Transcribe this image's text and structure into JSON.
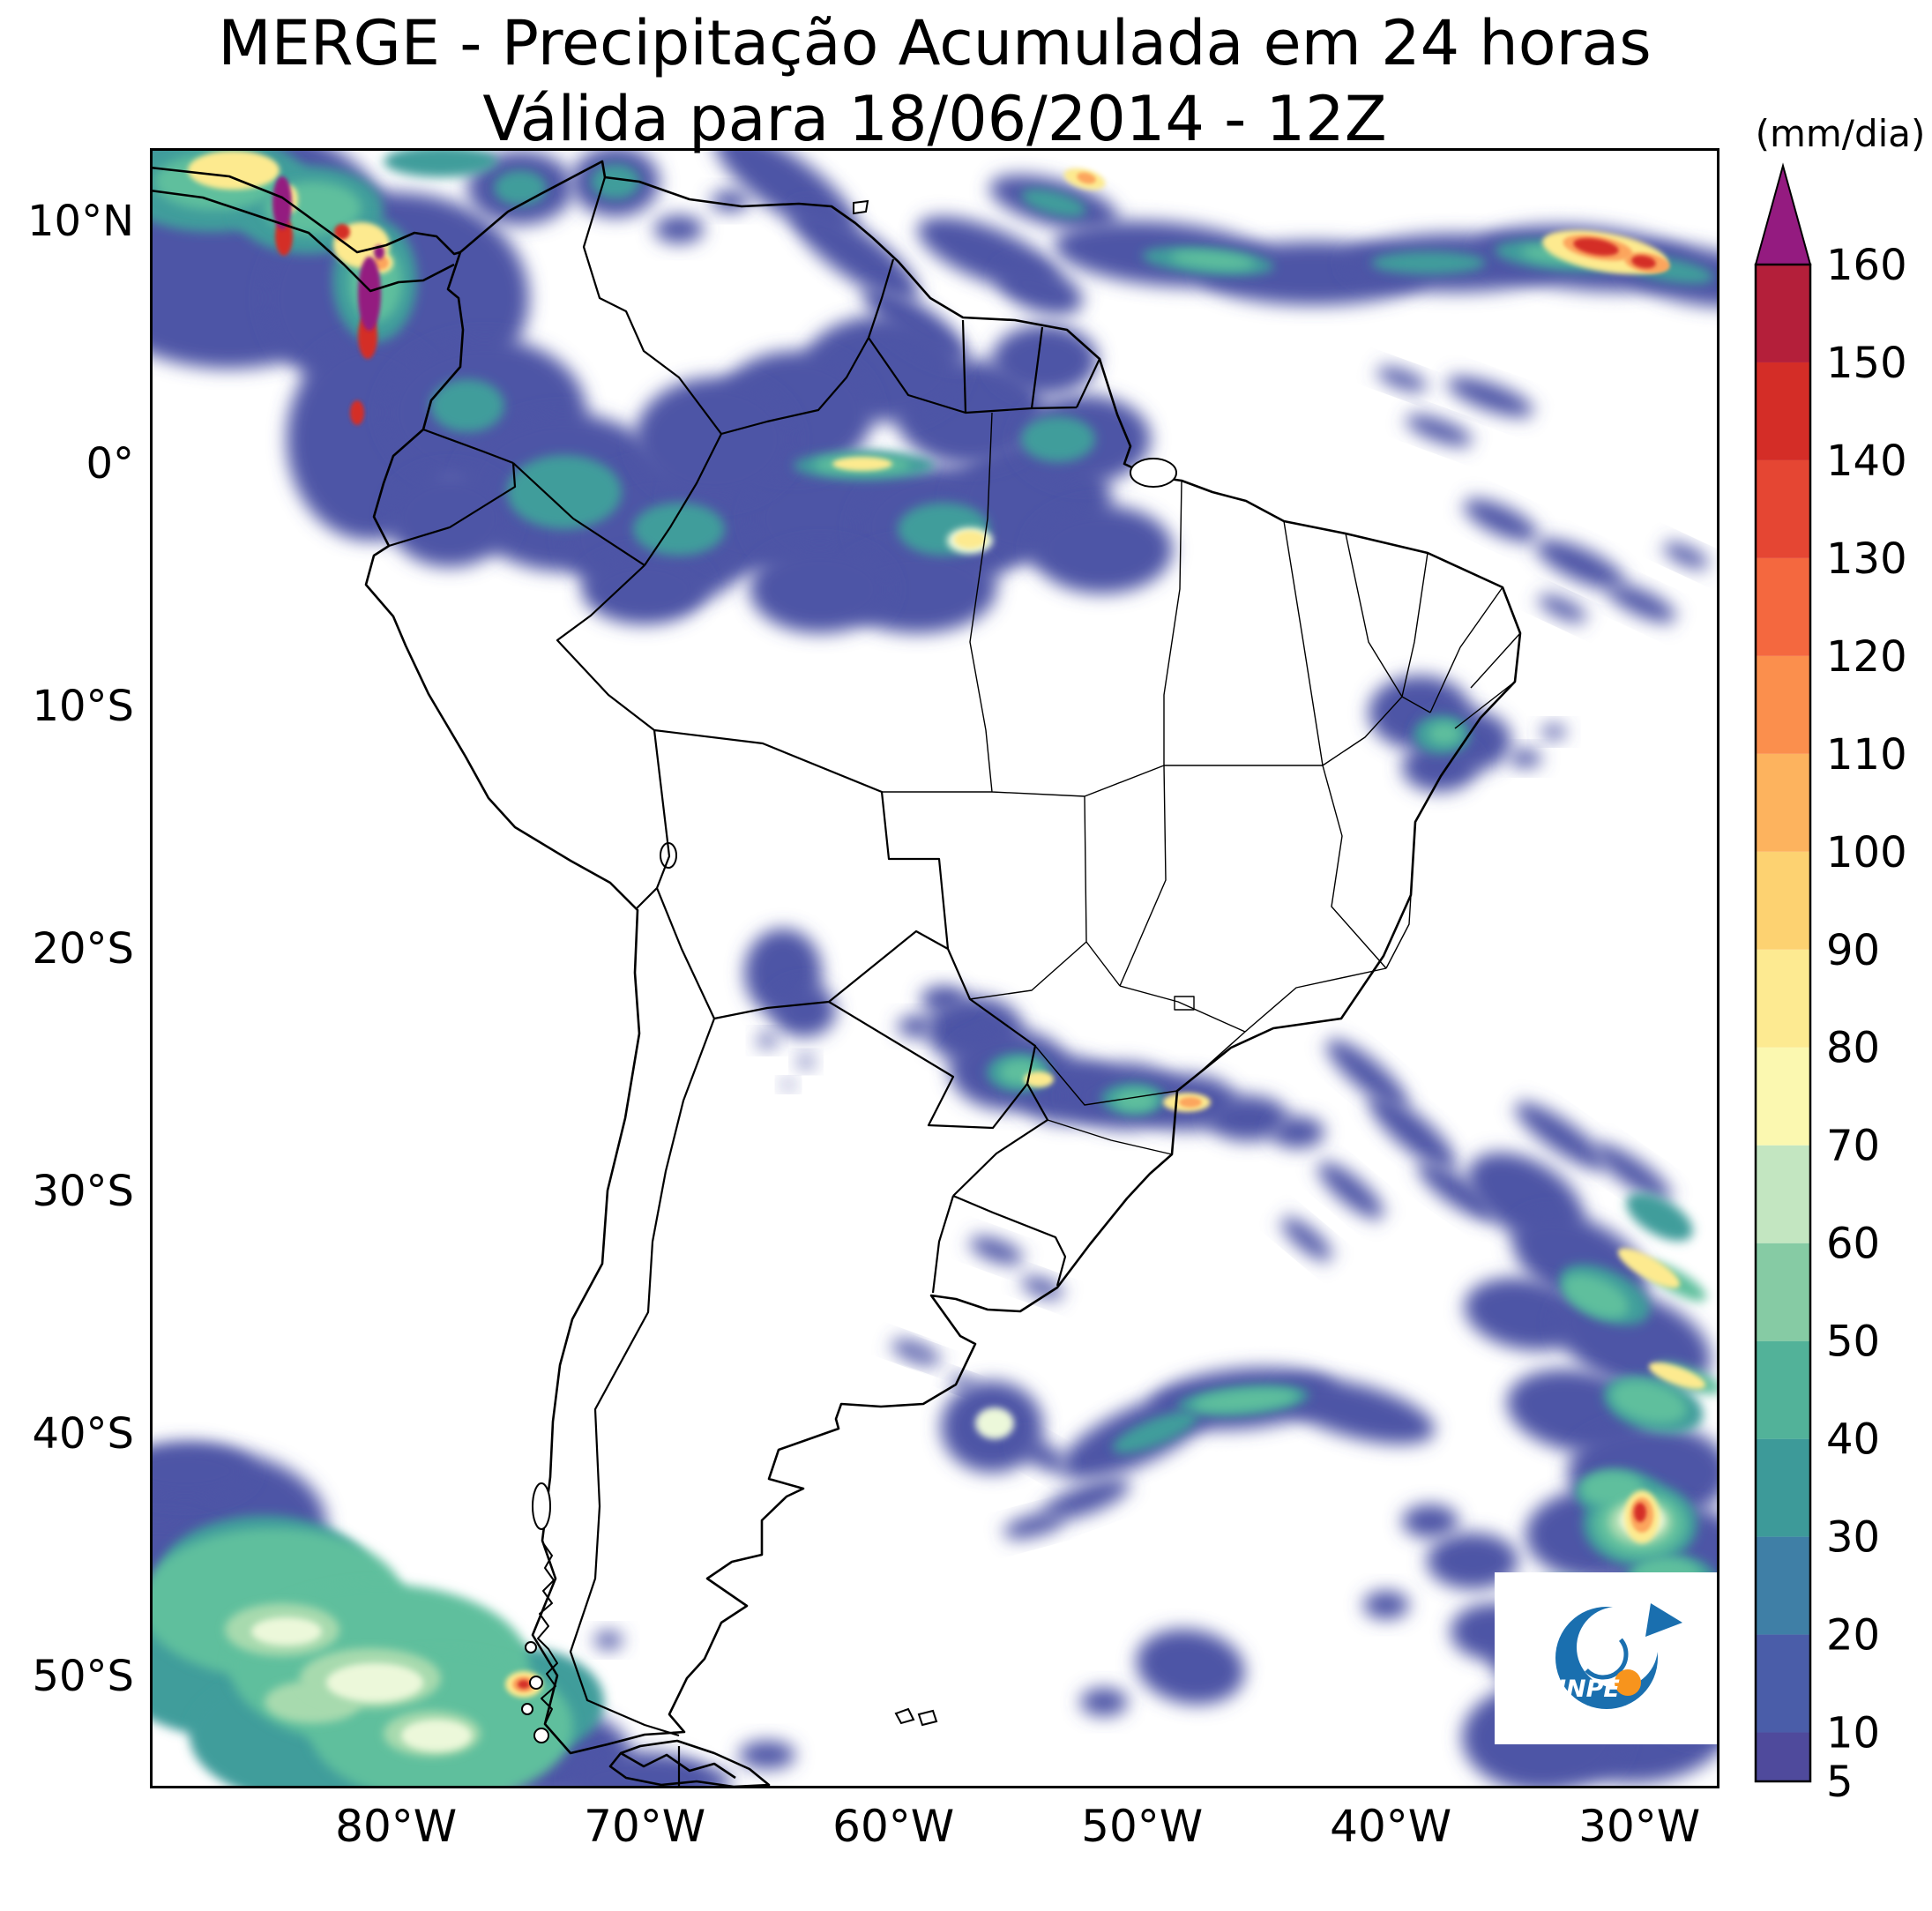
{
  "title": {
    "line1": "MERGE - Precipitação Acumulada em 24 horas",
    "line2": "Válida para 18/06/2014 - 12Z"
  },
  "axes": {
    "lat_ticks": [
      {
        "label": "10°N",
        "deg": 10
      },
      {
        "label": "0°",
        "deg": 0
      },
      {
        "label": "10°S",
        "deg": -10
      },
      {
        "label": "20°S",
        "deg": -20
      },
      {
        "label": "30°S",
        "deg": -30
      },
      {
        "label": "40°S",
        "deg": -40
      },
      {
        "label": "50°S",
        "deg": -50
      }
    ],
    "lon_ticks": [
      {
        "label": "80°W",
        "deg": 80
      },
      {
        "label": "70°W",
        "deg": 70
      },
      {
        "label": "60°W",
        "deg": 60
      },
      {
        "label": "50°W",
        "deg": 50
      },
      {
        "label": "40°W",
        "deg": 40
      },
      {
        "label": "30°W",
        "deg": 30
      }
    ]
  },
  "colorbar": {
    "unit_label": "(mm/dia)",
    "levels": [
      5,
      10,
      20,
      30,
      40,
      50,
      60,
      70,
      80,
      90,
      100,
      110,
      120,
      130,
      140,
      150,
      160
    ],
    "tick_labels": [
      "5",
      "10",
      "20",
      "30",
      "40",
      "50",
      "60",
      "70",
      "80",
      "90",
      "100",
      "110",
      "120",
      "130",
      "140",
      "150",
      "160"
    ],
    "segment_colors": [
      "#4f4a9c",
      "#4a5da9",
      "#3f7fa6",
      "#3d9a99",
      "#52b299",
      "#86cba4",
      "#c3e6c1",
      "#fbf8b0",
      "#fdea91",
      "#fdd271",
      "#fdb35e",
      "#fb8f4d",
      "#f4683f",
      "#e54633",
      "#d42d27",
      "#b41f3a"
    ],
    "extend_color": "#941b80"
  },
  "logo": {
    "text": "INPE"
  },
  "palette": {
    "blue": "#4e55a6",
    "teal": "#3f9d9b",
    "green": "#5fbf9d",
    "lgreen": "#a7daae",
    "pale": "#ecf8da",
    "yellow": "#fdea8f",
    "orange": "#fca55d",
    "red": "#d42d27",
    "magenta": "#941b80",
    "logo_blue": "#1a6faf",
    "logo_orange": "#f7941d",
    "background": "#ffffff",
    "line": "#000000"
  },
  "precipitation_blobs": {
    "blue": [
      [
        90,
        110,
        190,
        140,
        0
      ],
      [
        280,
        170,
        150,
        120,
        0
      ],
      [
        250,
        330,
        95,
        115,
        0
      ],
      [
        420,
        45,
        60,
        42,
        0
      ],
      [
        528,
        38,
        50,
        40,
        0
      ],
      [
        600,
        92,
        28,
        16,
        0
      ],
      [
        658,
        60,
        22,
        12,
        0
      ],
      [
        380,
        300,
        115,
        85,
        0
      ],
      [
        470,
        390,
        120,
        90,
        0
      ],
      [
        580,
        440,
        110,
        80,
        0
      ],
      [
        340,
        420,
        70,
        55,
        0
      ],
      [
        690,
        400,
        100,
        80,
        0
      ],
      [
        790,
        420,
        110,
        70,
        0
      ],
      [
        900,
        430,
        100,
        70,
        0
      ],
      [
        1000,
        400,
        90,
        70,
        0
      ],
      [
        930,
        300,
        85,
        60,
        0
      ],
      [
        830,
        250,
        90,
        60,
        0
      ],
      [
        730,
        300,
        90,
        70,
        0
      ],
      [
        640,
        330,
        90,
        70,
        0
      ],
      [
        1060,
        330,
        75,
        50,
        0
      ],
      [
        1015,
        240,
        60,
        40,
        0
      ],
      [
        1080,
        455,
        80,
        50,
        0
      ],
      [
        870,
        500,
        90,
        50,
        0
      ],
      [
        760,
        500,
        80,
        50,
        0
      ],
      [
        560,
        500,
        70,
        40,
        0
      ],
      [
        720,
        40,
        95,
        32,
        35
      ],
      [
        800,
        120,
        85,
        27,
        35
      ],
      [
        868,
        200,
        70,
        22,
        35
      ],
      [
        950,
        120,
        85,
        30,
        22
      ],
      [
        1025,
        62,
        75,
        26,
        15
      ],
      [
        1150,
        120,
        125,
        36,
        5
      ],
      [
        1320,
        142,
        130,
        36,
        0
      ],
      [
        1480,
        130,
        125,
        33,
        0
      ],
      [
        1630,
        125,
        125,
        36,
        5
      ],
      [
        1755,
        145,
        85,
        32,
        10
      ],
      [
        1010,
        160,
        50,
        25,
        20
      ],
      [
        1520,
        282,
        52,
        15,
        20
      ],
      [
        1462,
        320,
        40,
        12,
        20
      ],
      [
        1420,
        262,
        30,
        10,
        20
      ],
      [
        1532,
        422,
        46,
        16,
        25
      ],
      [
        1622,
        472,
        55,
        18,
        25
      ],
      [
        1692,
        516,
        42,
        14,
        25
      ],
      [
        1602,
        522,
        30,
        10,
        25
      ],
      [
        1742,
        462,
        28,
        10,
        25
      ],
      [
        1440,
        640,
        58,
        42,
        0
      ],
      [
        1492,
        672,
        52,
        36,
        0
      ],
      [
        1462,
        702,
        42,
        28,
        0
      ],
      [
        1560,
        692,
        18,
        10,
        0
      ],
      [
        1592,
        662,
        14,
        8,
        0
      ],
      [
        718,
        935,
        44,
        50,
        0
      ],
      [
        742,
        978,
        36,
        30,
        0
      ],
      [
        700,
        1012,
        11,
        8,
        0
      ],
      [
        744,
        1036,
        9,
        7,
        0
      ],
      [
        724,
        1062,
        7,
        5,
        0
      ],
      [
        935,
        1000,
        55,
        38,
        0
      ],
      [
        975,
        1045,
        68,
        46,
        0
      ],
      [
        1040,
        1068,
        60,
        38,
        0
      ],
      [
        1105,
        1075,
        65,
        38,
        0
      ],
      [
        1175,
        1082,
        58,
        32,
        0
      ],
      [
        1245,
        1100,
        46,
        26,
        0
      ],
      [
        1302,
        1116,
        30,
        18,
        0
      ],
      [
        900,
        965,
        26,
        15,
        0
      ],
      [
        868,
        996,
        20,
        12,
        0
      ],
      [
        960,
        1250,
        32,
        12,
        20
      ],
      [
        1012,
        1292,
        25,
        10,
        20
      ],
      [
        880,
        1370,
        18,
        8,
        20
      ],
      [
        922,
        1400,
        15,
        7,
        20
      ],
      [
        860,
        1362,
        20,
        9,
        20
      ],
      [
        1120,
        1460,
        95,
        32,
        -25
      ],
      [
        1240,
        1418,
        105,
        34,
        -5
      ],
      [
        1368,
        1432,
        92,
        30,
        15
      ],
      [
        1062,
        1532,
        52,
        16,
        -20
      ],
      [
        1002,
        1562,
        35,
        12,
        -15
      ],
      [
        955,
        1450,
        58,
        52,
        0
      ],
      [
        1012,
        1482,
        32,
        13,
        30
      ],
      [
        1380,
        1050,
        58,
        17,
        40
      ],
      [
        1432,
        1116,
        62,
        19,
        40
      ],
      [
        1362,
        1182,
        47,
        15,
        40
      ],
      [
        1482,
        1182,
        52,
        16,
        35
      ],
      [
        1312,
        1237,
        36,
        12,
        40
      ],
      [
        1600,
        1120,
        62,
        17,
        35
      ],
      [
        1682,
        1162,
        52,
        15,
        35
      ],
      [
        1560,
        1190,
        72,
        42,
        30
      ],
      [
        1622,
        1262,
        82,
        46,
        25
      ],
      [
        1560,
        1322,
        70,
        40,
        10
      ],
      [
        1682,
        1352,
        92,
        52,
        20
      ],
      [
        1620,
        1432,
        82,
        46,
        10
      ],
      [
        1700,
        1502,
        92,
        56,
        0
      ],
      [
        1642,
        1572,
        82,
        52,
        0
      ],
      [
        1742,
        1602,
        72,
        62,
        0
      ],
      [
        1700,
        1682,
        102,
        72,
        0
      ],
      [
        1600,
        1702,
        82,
        62,
        0
      ],
      [
        1682,
        1782,
        112,
        72,
        0
      ],
      [
        1580,
        1802,
        92,
        62,
        0
      ],
      [
        1762,
        1722,
        82,
        82,
        0
      ],
      [
        1500,
        1602,
        52,
        32,
        0
      ],
      [
        1522,
        1682,
        47,
        32,
        0
      ],
      [
        1452,
        1557,
        32,
        19,
        0
      ],
      [
        1402,
        1652,
        26,
        16,
        0
      ],
      [
        1180,
        1722,
        62,
        42,
        10
      ],
      [
        1082,
        1762,
        27,
        16,
        0
      ],
      [
        700,
        1822,
        32,
        16,
        0
      ],
      [
        520,
        1692,
        16,
        10,
        0
      ],
      [
        620,
        1852,
        40,
        16,
        0
      ],
      [
        60,
        1560,
        140,
        85,
        0
      ],
      [
        10,
        1650,
        120,
        95,
        0
      ],
      [
        460,
        1822,
        85,
        52,
        0
      ],
      [
        555,
        1850,
        80,
        32,
        0
      ],
      [
        40,
        1500,
        75,
        32,
        0
      ]
    ],
    "teal": [
      [
        470,
        390,
        65,
        42,
        0
      ],
      [
        600,
        432,
        52,
        30,
        0
      ],
      [
        900,
        432,
        52,
        30,
        0
      ],
      [
        1030,
        330,
        42,
        26,
        0
      ],
      [
        360,
        292,
        42,
        30,
        0
      ],
      [
        528,
        38,
        28,
        20,
        0
      ],
      [
        420,
        45,
        30,
        20,
        0
      ],
      [
        70,
        40,
        110,
        55,
        0
      ],
      [
        180,
        70,
        85,
        50,
        0
      ],
      [
        255,
        150,
        48,
        70,
        0
      ],
      [
        330,
        15,
        65,
        18,
        0
      ],
      [
        810,
        360,
        80,
        16,
        0
      ],
      [
        1025,
        62,
        38,
        13,
        15
      ],
      [
        1200,
        128,
        75,
        15,
        5
      ],
      [
        1450,
        130,
        65,
        13,
        0
      ],
      [
        1600,
        122,
        75,
        17,
        5
      ],
      [
        1722,
        138,
        52,
        13,
        10
      ],
      [
        1465,
        665,
        32,
        22,
        0
      ],
      [
        985,
        1048,
        36,
        22,
        0
      ],
      [
        1115,
        1078,
        36,
        18,
        0
      ],
      [
        1140,
        1456,
        52,
        15,
        -22
      ],
      [
        1240,
        1420,
        75,
        16,
        -5
      ],
      [
        1650,
        1300,
        55,
        28,
        25
      ],
      [
        1705,
        1425,
        58,
        30,
        15
      ],
      [
        1665,
        1525,
        48,
        26,
        0
      ],
      [
        1725,
        1625,
        52,
        30,
        0
      ],
      [
        1605,
        1645,
        42,
        24,
        0
      ],
      [
        1712,
        1212,
        42,
        20,
        30
      ],
      [
        1690,
        1560,
        65,
        48,
        0
      ],
      [
        90,
        1720,
        135,
        82,
        0
      ],
      [
        210,
        1800,
        165,
        82,
        0
      ],
      [
        420,
        1762,
        95,
        62,
        0
      ],
      [
        130,
        1620,
        120,
        70,
        0
      ]
    ],
    "green": [
      [
        140,
        1650,
        150,
        85,
        0
      ],
      [
        260,
        1720,
        170,
        92,
        0
      ],
      [
        330,
        1790,
        150,
        85,
        0
      ],
      [
        75,
        38,
        70,
        32,
        0
      ],
      [
        185,
        68,
        55,
        30,
        0
      ],
      [
        256,
        152,
        30,
        45,
        0
      ],
      [
        1242,
        1420,
        60,
        12,
        -5
      ],
      [
        988,
        1048,
        24,
        14,
        0
      ],
      [
        1118,
        1080,
        24,
        12,
        0
      ],
      [
        808,
        359,
        55,
        11,
        0
      ],
      [
        1600,
        121,
        45,
        9,
        5
      ],
      [
        1205,
        127,
        48,
        9,
        5
      ],
      [
        1468,
        664,
        18,
        12,
        0
      ],
      [
        1690,
        1560,
        52,
        38,
        0
      ],
      [
        1640,
        1302,
        40,
        20,
        25
      ],
      [
        1700,
        1422,
        44,
        22,
        15
      ],
      [
        1658,
        1520,
        36,
        20,
        0
      ],
      [
        1720,
        1622,
        40,
        24,
        0
      ],
      [
        1745,
        1395,
        40,
        12,
        20
      ],
      [
        1730,
        1285,
        40,
        12,
        30
      ]
    ],
    "lgreen": [
      [
        150,
        1680,
        65,
        30,
        0
      ],
      [
        185,
        1762,
        55,
        24,
        0
      ],
      [
        250,
        1735,
        80,
        34,
        0
      ],
      [
        320,
        1798,
        55,
        26,
        0
      ],
      [
        1690,
        1558,
        36,
        26,
        0
      ]
    ],
    "pale": [
      [
        255,
        1740,
        55,
        22,
        0
      ],
      [
        325,
        1800,
        40,
        18,
        0
      ],
      [
        155,
        1682,
        40,
        16,
        0
      ],
      [
        930,
        445,
        26,
        15,
        0
      ],
      [
        958,
        1446,
        22,
        18,
        0
      ],
      [
        1692,
        1556,
        26,
        18,
        0
      ]
    ],
    "yellow": [
      [
        240,
        110,
        32,
        26,
        0
      ],
      [
        95,
        25,
        52,
        22,
        0
      ],
      [
        1650,
        118,
        72,
        22,
        10
      ],
      [
        1060,
        35,
        24,
        11,
        15
      ],
      [
        808,
        358,
        34,
        8,
        0
      ],
      [
        930,
        444,
        18,
        10,
        0
      ],
      [
        1008,
        1056,
        17,
        9,
        0
      ],
      [
        1176,
        1082,
        27,
        11,
        0
      ],
      [
        1700,
        1270,
        40,
        12,
        30
      ],
      [
        1732,
        1392,
        34,
        10,
        20
      ],
      [
        1692,
        1552,
        20,
        30,
        0
      ],
      [
        424,
        1742,
        21,
        15,
        0
      ],
      [
        262,
        130,
        14,
        12,
        0
      ],
      [
        158,
        58,
        10,
        16,
        0
      ]
    ],
    "orange": [
      [
        1642,
        113,
        40,
        13,
        10
      ],
      [
        1698,
        130,
        26,
        11,
        10
      ],
      [
        1692,
        1550,
        13,
        20,
        0
      ],
      [
        424,
        1742,
        13,
        9,
        0
      ],
      [
        1180,
        1082,
        13,
        6,
        0
      ],
      [
        262,
        130,
        9,
        8,
        0
      ],
      [
        1062,
        34,
        11,
        6,
        15
      ]
    ],
    "red": [
      [
        1640,
        112,
        26,
        9,
        10
      ],
      [
        1694,
        129,
        14,
        7,
        10
      ],
      [
        152,
        100,
        10,
        22,
        0
      ],
      [
        247,
        213,
        11,
        26,
        0
      ],
      [
        235,
        300,
        8,
        14,
        0
      ],
      [
        1690,
        1547,
        7,
        11,
        0
      ],
      [
        424,
        1742,
        7,
        5,
        0
      ],
      [
        218,
        95,
        9,
        9,
        0
      ]
    ],
    "magenta": [
      [
        150,
        62,
        11,
        30,
        0
      ],
      [
        249,
        165,
        13,
        42,
        0
      ],
      [
        260,
        118,
        6,
        8,
        0
      ]
    ]
  }
}
